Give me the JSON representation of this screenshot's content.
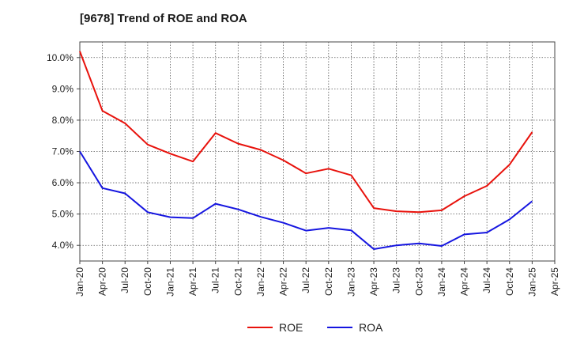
{
  "chart_data": {
    "type": "line",
    "title": "[9678]  Trend of ROE and ROA",
    "xlabel": "",
    "ylabel": "",
    "x": [
      "Jan-20",
      "Apr-20",
      "Jul-20",
      "Oct-20",
      "Jan-21",
      "Apr-21",
      "Jul-21",
      "Oct-21",
      "Jan-22",
      "Apr-22",
      "Jul-22",
      "Oct-22",
      "Jan-23",
      "Apr-23",
      "Jul-23",
      "Oct-23",
      "Jan-24",
      "Apr-24",
      "Jul-24",
      "Oct-24",
      "Jan-25"
    ],
    "x_ticks": [
      "Jan-20",
      "Apr-20",
      "Jul-20",
      "Oct-20",
      "Jan-21",
      "Apr-21",
      "Jul-21",
      "Oct-21",
      "Jan-22",
      "Apr-22",
      "Jul-22",
      "Oct-22",
      "Jan-23",
      "Apr-23",
      "Jul-23",
      "Oct-23",
      "Jan-24",
      "Apr-24",
      "Jul-24",
      "Oct-24",
      "Jan-25",
      "Apr-25"
    ],
    "y_ticks": [
      4.0,
      5.0,
      6.0,
      7.0,
      8.0,
      9.0,
      10.0
    ],
    "y_tick_labels": [
      "4.0%",
      "5.0%",
      "6.0%",
      "7.0%",
      "8.0%",
      "9.0%",
      "10.0%"
    ],
    "ylim": [
      3.5,
      10.5
    ],
    "grid": true,
    "legend_position": "bottom-center",
    "series": [
      {
        "name": "ROE",
        "color": "#e8120c",
        "values": [
          10.2,
          8.3,
          7.9,
          7.22,
          6.93,
          6.68,
          7.59,
          7.25,
          7.05,
          6.72,
          6.3,
          6.45,
          6.24,
          5.19,
          5.09,
          5.06,
          5.12,
          5.57,
          5.9,
          6.58,
          7.62
        ]
      },
      {
        "name": "ROA",
        "color": "#1515e0",
        "values": [
          7.0,
          5.83,
          5.66,
          5.06,
          4.9,
          4.87,
          5.33,
          5.15,
          4.91,
          4.72,
          4.47,
          4.56,
          4.48,
          3.88,
          4.0,
          4.06,
          3.98,
          4.35,
          4.41,
          4.83,
          5.41
        ]
      }
    ]
  }
}
